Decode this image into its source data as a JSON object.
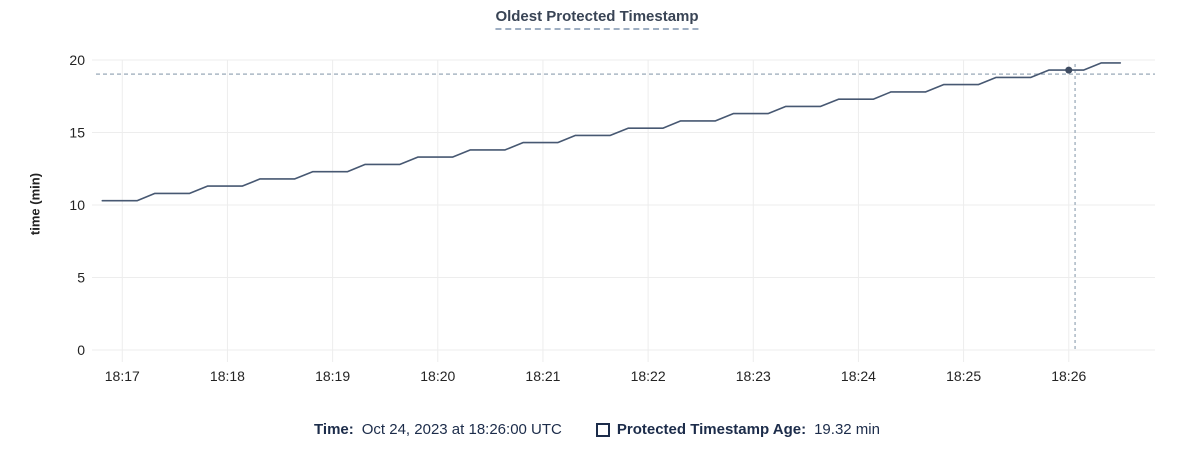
{
  "header": {
    "title": "Oldest Protected Timestamp"
  },
  "footer": {
    "time_label": "Time:",
    "time_value": "Oct 24, 2023 at 18:26:00 UTC",
    "series_label": "Protected Timestamp Age:",
    "series_value": "19.32 min",
    "swatch_icon": "empty-square-checkbox"
  },
  "colors": {
    "background": "#ffffff",
    "title_text": "#394455",
    "title_underline": "#9fafc3",
    "series_line": "#475872",
    "hover_dot": "#3f4d63",
    "gridline": "#ededed",
    "crosshair_dash": "#aab7c4",
    "tick_text": "#242424",
    "legend_text": "#1c2c4a"
  },
  "chart_data": {
    "type": "line",
    "title": "Oldest Protected Timestamp",
    "xlabel": "",
    "ylabel": "time (min)",
    "grid": true,
    "legend_position": "bottom-center",
    "x_axis": {
      "unit": "minutes after 18:17 UTC",
      "tick_positions": [
        0,
        1,
        2,
        3,
        4,
        5,
        6,
        7,
        8,
        9
      ],
      "tick_labels": [
        "18:17",
        "18:18",
        "18:19",
        "18:20",
        "18:21",
        "18:22",
        "18:23",
        "18:24",
        "18:25",
        "18:26"
      ],
      "range": [
        -0.25,
        9.82
      ]
    },
    "y_axis": {
      "ticks": [
        0,
        5,
        10,
        15,
        20
      ],
      "tick_labels": [
        "0",
        "5",
        "10",
        "15",
        "20"
      ],
      "range": [
        0,
        20
      ]
    },
    "series": [
      {
        "name": "Protected Timestamp Age",
        "color": "#475872",
        "points": [
          [
            -0.19,
            10.3
          ],
          [
            0.14,
            10.3
          ],
          [
            0.31,
            10.8
          ],
          [
            0.64,
            10.8
          ],
          [
            0.81,
            11.3
          ],
          [
            1.14,
            11.3
          ],
          [
            1.31,
            11.8
          ],
          [
            1.64,
            11.8
          ],
          [
            1.81,
            12.3
          ],
          [
            2.14,
            12.3
          ],
          [
            2.31,
            12.8
          ],
          [
            2.64,
            12.8
          ],
          [
            2.81,
            13.3
          ],
          [
            3.14,
            13.3
          ],
          [
            3.31,
            13.8
          ],
          [
            3.64,
            13.8
          ],
          [
            3.81,
            14.3
          ],
          [
            4.14,
            14.3
          ],
          [
            4.31,
            14.8
          ],
          [
            4.64,
            14.8
          ],
          [
            4.81,
            15.3
          ],
          [
            5.14,
            15.3
          ],
          [
            5.31,
            15.8
          ],
          [
            5.64,
            15.8
          ],
          [
            5.81,
            16.3
          ],
          [
            6.14,
            16.3
          ],
          [
            6.31,
            16.8
          ],
          [
            6.64,
            16.8
          ],
          [
            6.81,
            17.3
          ],
          [
            7.14,
            17.3
          ],
          [
            7.31,
            17.8
          ],
          [
            7.64,
            17.8
          ],
          [
            7.81,
            18.3
          ],
          [
            8.14,
            18.3
          ],
          [
            8.31,
            18.8
          ],
          [
            8.64,
            18.8
          ],
          [
            8.81,
            19.3
          ],
          [
            9.14,
            19.3
          ],
          [
            9.31,
            19.8
          ],
          [
            9.49,
            19.8
          ]
        ]
      }
    ],
    "hover": {
      "hovered_time_label": "Oct 24, 2023 at 18:26:00 UTC",
      "hovered_value_label": "19.32 min",
      "dot_point": [
        9.0,
        19.3
      ],
      "crosshair_x": 9.06,
      "crosshair_y_value": 19.03
    }
  }
}
